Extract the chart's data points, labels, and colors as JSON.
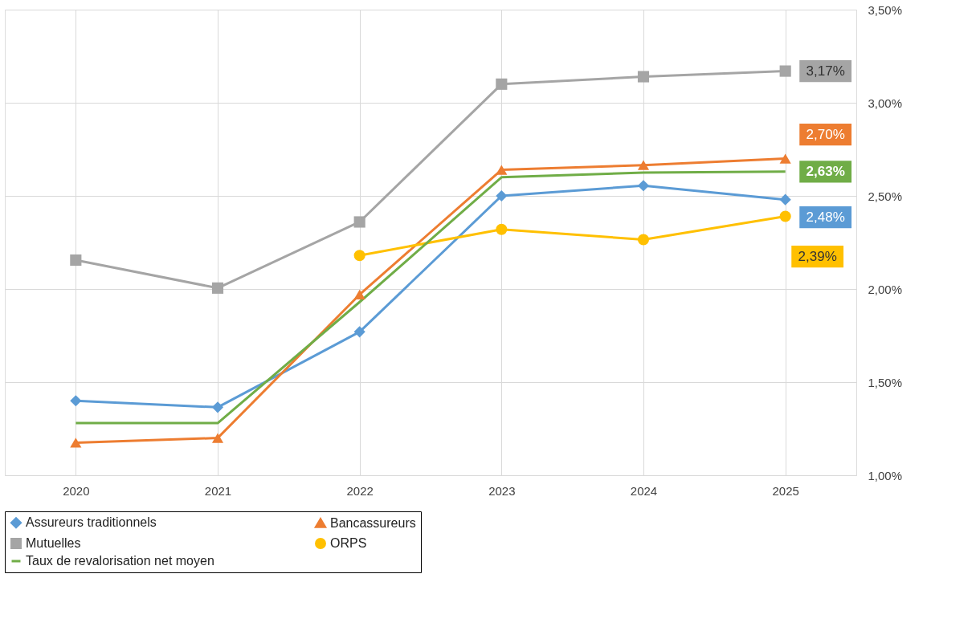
{
  "chart_data": {
    "type": "line",
    "categories": [
      "2020",
      "2021",
      "2022",
      "2023",
      "2024",
      "2025"
    ],
    "series": [
      {
        "name": "Assureurs traditionnels",
        "color": "#5b9bd5",
        "marker": "diamond",
        "values": [
          1.4,
          1.365,
          1.77,
          2.5,
          2.555,
          2.48
        ],
        "value_labels": [
          null,
          null,
          null,
          null,
          null,
          "2,48%"
        ]
      },
      {
        "name": "Bancassureurs",
        "color": "#ed7d31",
        "marker": "triangle",
        "values": [
          1.175,
          1.2,
          1.97,
          2.64,
          2.665,
          2.7
        ],
        "value_labels": [
          null,
          null,
          null,
          null,
          null,
          "2,70%"
        ]
      },
      {
        "name": "Mutuelles",
        "color": "#a5a5a5",
        "marker": "square",
        "values": [
          2.155,
          2.005,
          2.36,
          3.1,
          3.14,
          3.17
        ],
        "value_labels": [
          null,
          null,
          null,
          null,
          null,
          "3,17%"
        ]
      },
      {
        "name": "ORPS",
        "color": "#ffc000",
        "marker": "circle",
        "values": [
          null,
          null,
          2.18,
          2.32,
          2.265,
          2.39
        ],
        "value_labels": [
          null,
          null,
          null,
          null,
          null,
          "2,39%"
        ]
      },
      {
        "name": "Taux de revalorisation net moyen",
        "color": "#70ad47",
        "marker": "none",
        "values": [
          1.28,
          1.28,
          1.93,
          2.6,
          2.625,
          2.63
        ],
        "value_labels": [
          null,
          null,
          null,
          null,
          null,
          "2,63%"
        ]
      }
    ],
    "ylim": [
      1.0,
      3.5
    ],
    "yticks": [
      {
        "value": 1.0,
        "label": "1,00%"
      },
      {
        "value": 1.5,
        "label": "1,50%"
      },
      {
        "value": 2.0,
        "label": "2,00%"
      },
      {
        "value": 2.5,
        "label": "2,50%"
      },
      {
        "value": 3.0,
        "label": "3,00%"
      },
      {
        "value": 3.5,
        "label": "3,50%"
      }
    ],
    "grid": true,
    "legend": "bottom",
    "line_style": "solid"
  }
}
